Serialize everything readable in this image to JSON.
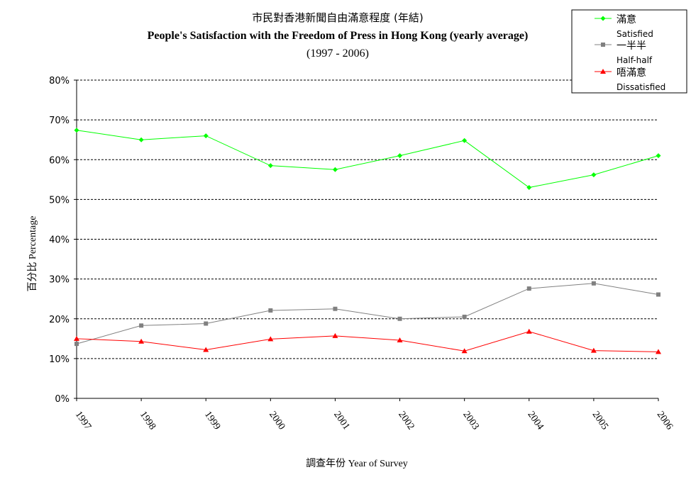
{
  "chart_data": {
    "type": "line",
    "title_zh": "市民對香港新聞自由滿意程度 (年結)",
    "title": "People's Satisfaction with the Freedom of Press in Hong Kong (yearly average)",
    "subtitle": "(1997 - 2006)",
    "xlabel": "調查年份 Year of Survey",
    "ylabel": "百分比 Percentage",
    "ylim": [
      0,
      80
    ],
    "yticks": [
      "0%",
      "10%",
      "20%",
      "30%",
      "40%",
      "50%",
      "60%",
      "70%",
      "80%"
    ],
    "categories": [
      "1997",
      "1998",
      "1999",
      "2000",
      "2001",
      "2002",
      "2003",
      "2004",
      "2005",
      "2006"
    ],
    "grid": true,
    "legend_position": "top-right",
    "series": [
      {
        "name": "滿意",
        "name_en": "Satisfied",
        "color": "#00ff00",
        "marker": "diamond",
        "values": [
          67.4,
          65.0,
          66.0,
          58.5,
          57.5,
          61.0,
          64.8,
          53.0,
          56.2,
          61.0
        ]
      },
      {
        "name": "一半半",
        "name_en": "Half-half",
        "color": "#808080",
        "marker": "square",
        "values": [
          13.7,
          18.3,
          18.8,
          22.1,
          22.5,
          20.0,
          20.5,
          27.6,
          28.9,
          26.1
        ]
      },
      {
        "name": "唔滿意",
        "name_en": "Dissatisfied",
        "color": "#ff0000",
        "marker": "triangle",
        "values": [
          15.0,
          14.3,
          12.2,
          14.9,
          15.7,
          14.6,
          11.9,
          16.8,
          12.0,
          11.7
        ]
      }
    ]
  }
}
